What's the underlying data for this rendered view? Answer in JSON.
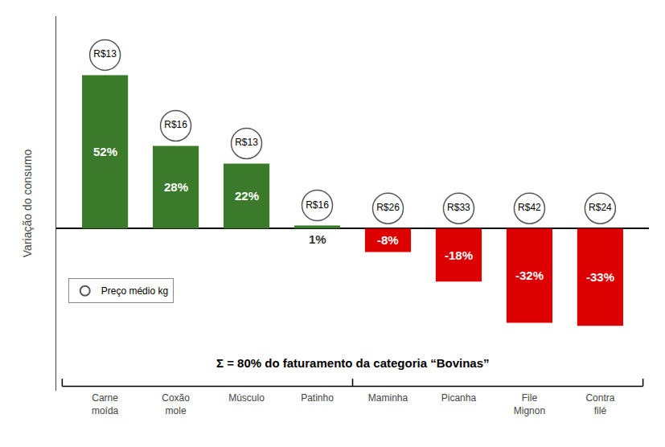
{
  "chart_data": {
    "type": "bar",
    "categories": [
      "Carne\nmoída",
      "Coxão\nmole",
      "Músculo",
      "Patinho",
      "Maminha",
      "Picanha",
      "File\nMignon",
      "Contra\nfilé"
    ],
    "values": [
      52,
      28,
      22,
      1,
      -8,
      -18,
      -32,
      -33
    ],
    "value_labels": [
      "52%",
      "28%",
      "22%",
      "1%",
      "-8%",
      "-18%",
      "-32%",
      "-33%"
    ],
    "colors": [
      "#3a7a2a",
      "#3a7a2a",
      "#3a7a2a",
      "#3a7a2a",
      "#dd0000",
      "#dd0000",
      "#dd0000",
      "#dd0000"
    ],
    "prices": {
      "name": "Preço médio kg",
      "labels": [
        "R$13",
        "R$16",
        "R$13",
        "R$16",
        "R$26",
        "R$33",
        "R$42",
        "R$24"
      ]
    },
    "ylabel": "Variação do consumo",
    "annotations": [
      "Σ = 80% do faturamento da categoria “Bovinas”"
    ],
    "ylim": [
      -55,
      72
    ],
    "tick_labels": "x",
    "data_labels": true,
    "grid": false,
    "legend": "lower left"
  }
}
